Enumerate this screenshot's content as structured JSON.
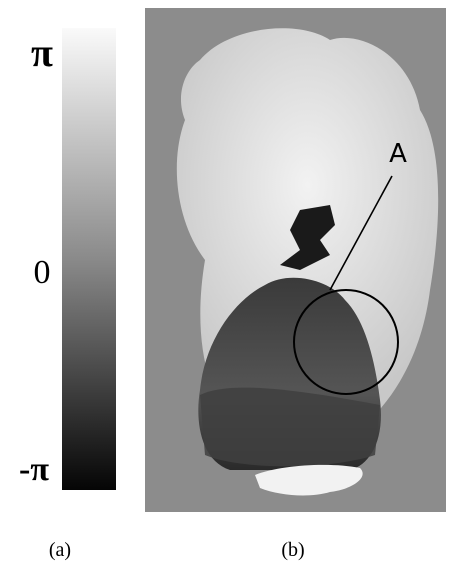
{
  "colorbar": {
    "labels": [
      "π",
      "0",
      "-π"
    ]
  },
  "panel": {
    "annotation": "A"
  },
  "captions": [
    "(a)",
    "(b)"
  ]
}
